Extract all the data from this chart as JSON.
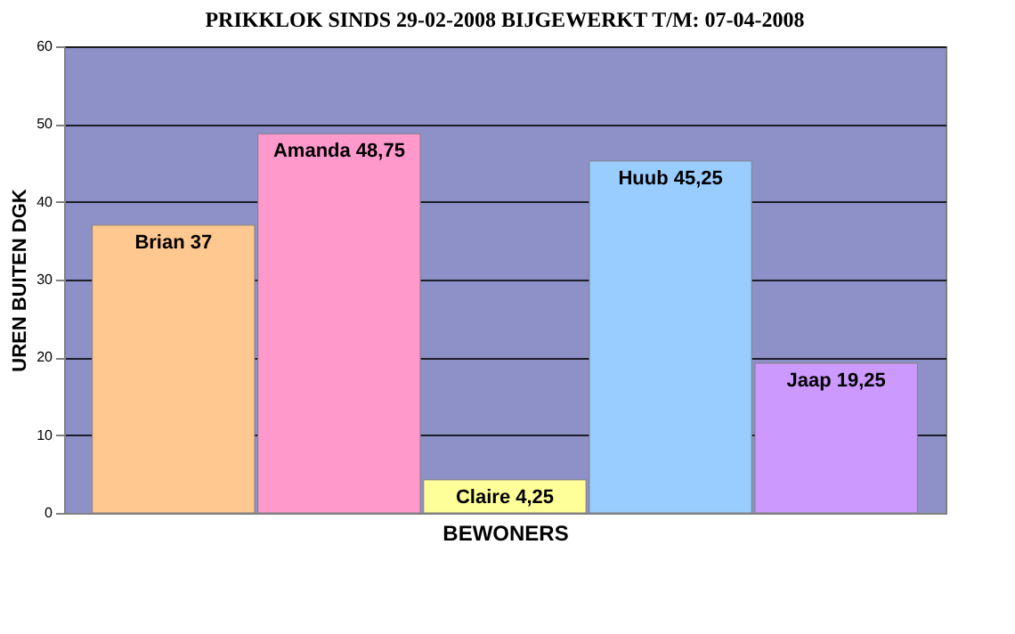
{
  "chart_data": {
    "type": "bar",
    "title": "PRIKKLOK SINDS 29-02-2008 BIJGEWERKT T/M: 07-04-2008",
    "xlabel": "BEWONERS",
    "ylabel": "UREN BUITEN DGK",
    "categories": [
      null,
      null,
      null,
      null,
      null
    ],
    "values": [
      37,
      48.75,
      4.25,
      45.25,
      19.25
    ],
    "value_labels": [
      "Brian 37",
      "Amanda 48,75",
      "Claire 4,25",
      "Huub 45,25",
      "Jaap 19,25"
    ],
    "colors": [
      "#ffc890",
      "#ff99cc",
      "#ffff99",
      "#99ccff",
      "#cc99ff"
    ],
    "ylim": [
      0,
      60
    ],
    "yticks": [
      0,
      10,
      20,
      30,
      40,
      50,
      60
    ],
    "grid": "y"
  }
}
